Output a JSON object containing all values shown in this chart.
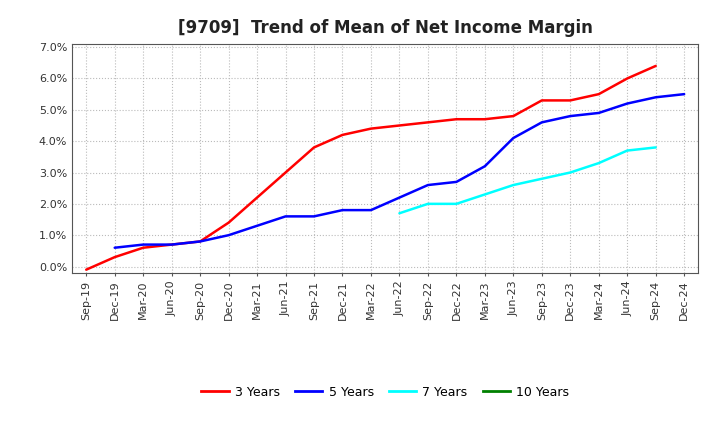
{
  "title": "[9709]  Trend of Mean of Net Income Margin",
  "x_labels": [
    "Sep-19",
    "Dec-19",
    "Mar-20",
    "Jun-20",
    "Sep-20",
    "Dec-20",
    "Mar-21",
    "Jun-21",
    "Sep-21",
    "Dec-21",
    "Mar-22",
    "Jun-22",
    "Sep-22",
    "Dec-22",
    "Mar-23",
    "Jun-23",
    "Sep-23",
    "Dec-23",
    "Mar-24",
    "Jun-24",
    "Sep-24",
    "Dec-24"
  ],
  "ylim": [
    -0.002,
    0.071
  ],
  "yticks": [
    0.0,
    0.01,
    0.02,
    0.03,
    0.04,
    0.05,
    0.06,
    0.07
  ],
  "series": {
    "3 Years": {
      "color": "#FF0000",
      "data_indices": [
        0,
        1,
        2,
        3,
        4,
        5,
        6,
        7,
        8,
        9,
        10,
        11,
        12,
        13,
        14,
        15,
        16,
        17,
        18,
        19,
        20
      ],
      "values": [
        -0.001,
        0.003,
        0.006,
        0.007,
        0.008,
        0.014,
        0.022,
        0.03,
        0.038,
        0.042,
        0.044,
        0.045,
        0.046,
        0.047,
        0.047,
        0.048,
        0.053,
        0.053,
        0.055,
        0.06,
        0.064
      ]
    },
    "5 Years": {
      "color": "#0000FF",
      "data_indices": [
        1,
        2,
        3,
        4,
        5,
        6,
        7,
        8,
        9,
        10,
        11,
        12,
        13,
        14,
        15,
        16,
        17,
        18,
        19,
        20,
        21
      ],
      "values": [
        0.006,
        0.007,
        0.007,
        0.008,
        0.01,
        0.013,
        0.016,
        0.016,
        0.018,
        0.018,
        0.022,
        0.026,
        0.027,
        0.032,
        0.041,
        0.046,
        0.048,
        0.049,
        0.052,
        0.054,
        0.055
      ]
    },
    "7 Years": {
      "color": "#00FFFF",
      "data_indices": [
        11,
        12,
        13,
        14,
        15,
        16,
        17,
        18,
        19,
        20
      ],
      "values": [
        0.017,
        0.02,
        0.02,
        0.023,
        0.026,
        0.028,
        0.03,
        0.033,
        0.037,
        0.038
      ]
    },
    "10 Years": {
      "color": "#008000",
      "data_indices": [],
      "values": []
    }
  },
  "background_color": "#ffffff",
  "plot_bg_color": "#ffffff",
  "grid_color": "#bbbbbb",
  "spine_color": "#555555",
  "title_fontsize": 12,
  "tick_fontsize": 8
}
